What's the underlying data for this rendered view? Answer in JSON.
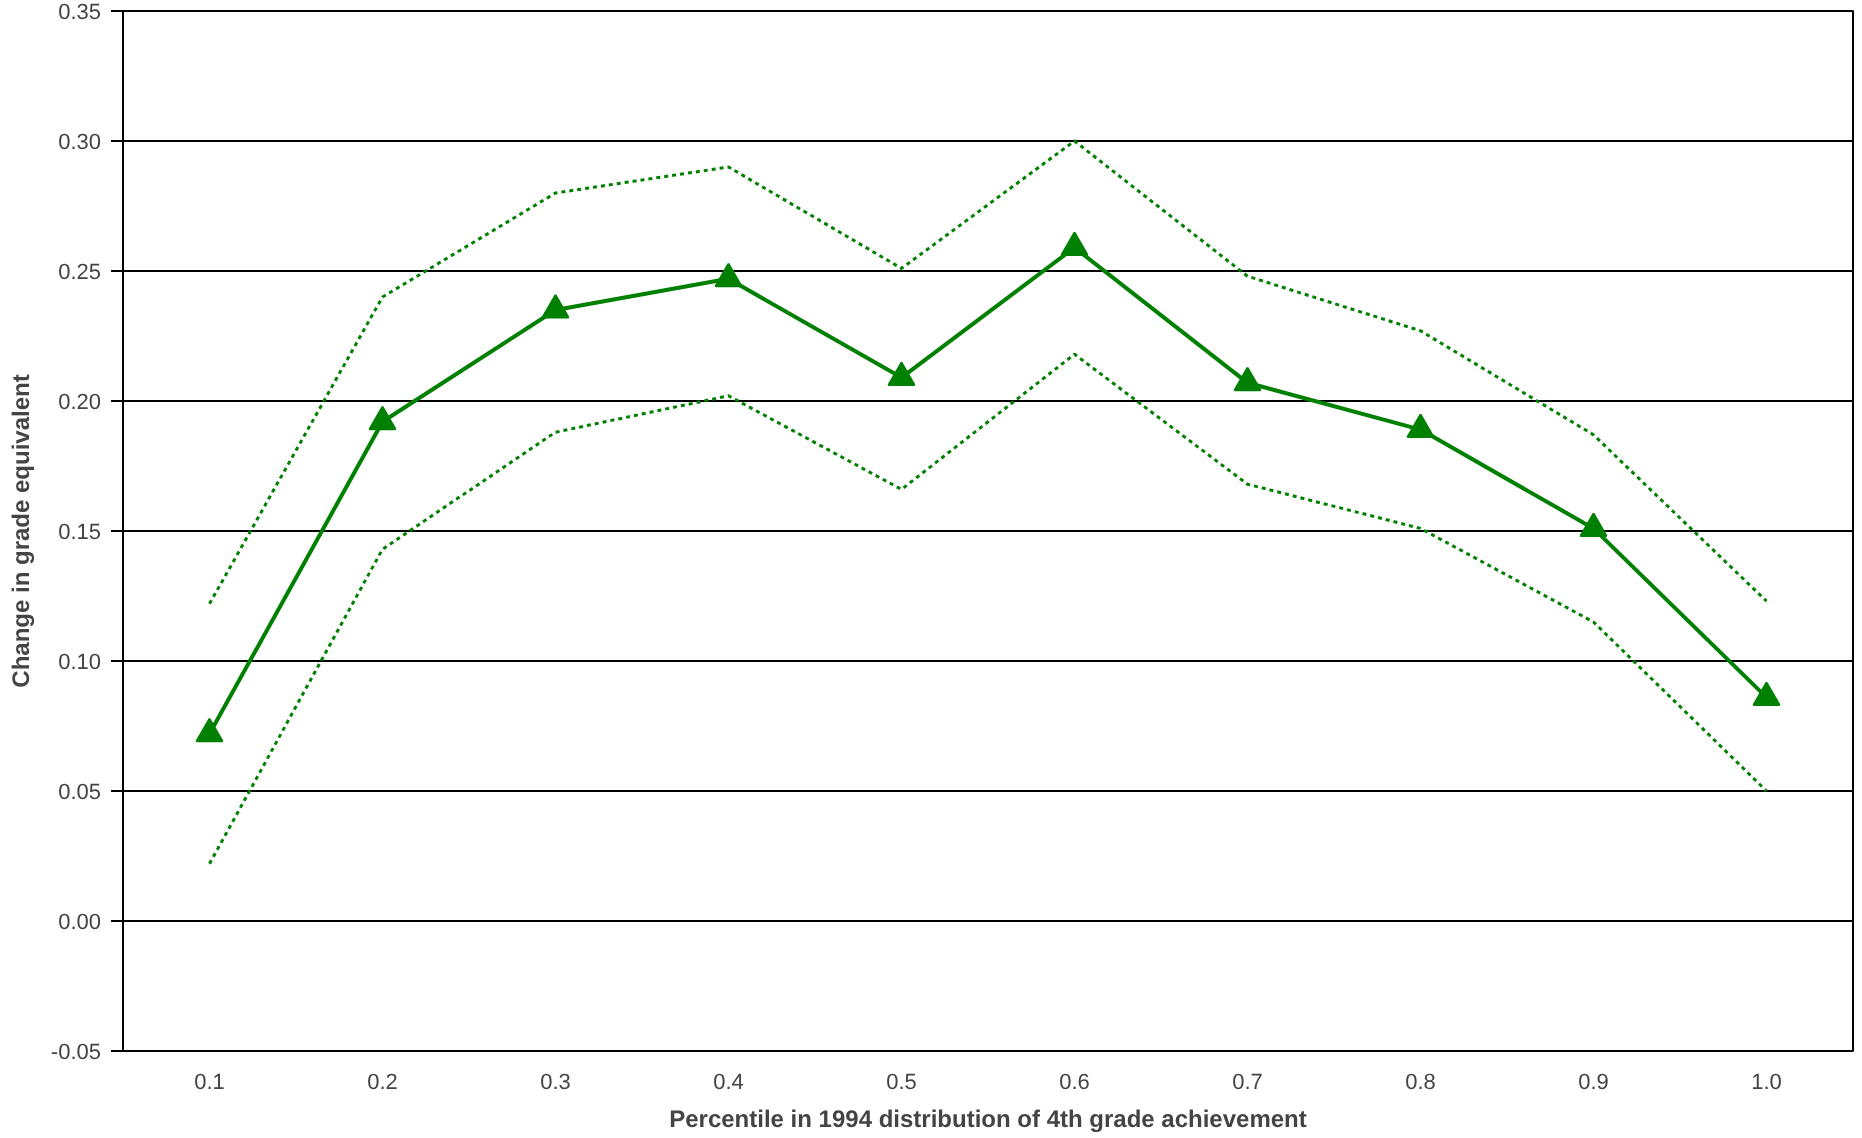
{
  "chart_data": {
    "type": "line",
    "xlabel": "Percentile in 1994 distribution of 4th grade achievement",
    "ylabel": "Change in grade equivalent",
    "categories": [
      "0.1",
      "0.2",
      "0.3",
      "0.4",
      "0.5",
      "0.6",
      "0.7",
      "0.8",
      "0.9",
      "1.0"
    ],
    "ylim": [
      -0.05,
      0.35
    ],
    "yticks": [
      {
        "value": -0.05,
        "label": "-0.05"
      },
      {
        "value": 0,
        "label": "0.00"
      },
      {
        "value": 0.05,
        "label": "0.05"
      },
      {
        "value": 0.1,
        "label": "0.10"
      },
      {
        "value": 0.15,
        "label": "0.15"
      },
      {
        "value": 0.2,
        "label": "0.20"
      },
      {
        "value": 0.25,
        "label": "0.25"
      },
      {
        "value": 0.3,
        "label": "0.30"
      },
      {
        "value": 0.35,
        "label": "0.35"
      }
    ],
    "grid": "y",
    "series": [
      {
        "color": "#008000",
        "marker": "triangle",
        "line_style": "solid",
        "values": [
          0.072,
          0.192,
          0.235,
          0.247,
          0.209,
          0.259,
          0.207,
          0.189,
          0.151,
          0.086
        ]
      },
      {
        "color": "#008000",
        "marker": "none",
        "line_style": "dotted",
        "values": [
          0.122,
          0.24,
          0.28,
          0.29,
          0.251,
          0.3,
          0.248,
          0.227,
          0.187,
          0.123
        ]
      },
      {
        "color": "#008000",
        "marker": "none",
        "line_style": "dotted",
        "values": [
          0.022,
          0.143,
          0.188,
          0.202,
          0.166,
          0.218,
          0.168,
          0.151,
          0.115,
          0.05
        ]
      }
    ]
  }
}
